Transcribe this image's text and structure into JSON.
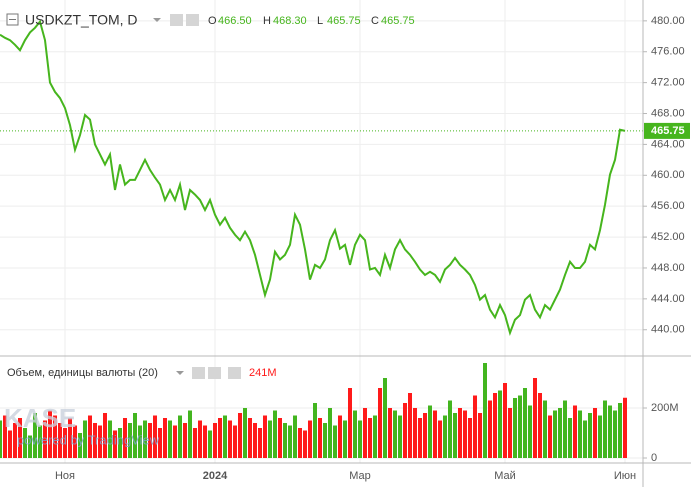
{
  "chart_data": [
    {
      "type": "line",
      "title": "USDKZT_TOM, D",
      "ohlc": [
        [
          "O",
          "466.50"
        ],
        [
          "H",
          "468.30"
        ],
        [
          "L",
          "465.75"
        ],
        [
          "C",
          "465.75"
        ]
      ],
      "categories": [
        null,
        null,
        null,
        null,
        null,
        null,
        null,
        null,
        null,
        null,
        null,
        null,
        null,
        "Ноя",
        null,
        null,
        null,
        null,
        null,
        null,
        null,
        null,
        null,
        null,
        null,
        null,
        null,
        null,
        null,
        null,
        null,
        null,
        null,
        null,
        null,
        null,
        null,
        null,
        null,
        null,
        null,
        null,
        null,
        "2024",
        null,
        null,
        null,
        null,
        null,
        null,
        null,
        null,
        null,
        null,
        null,
        null,
        null,
        null,
        null,
        null,
        null,
        null,
        null,
        null,
        null,
        null,
        null,
        null,
        null,
        null,
        null,
        null,
        "Мар",
        null,
        null,
        null,
        null,
        null,
        null,
        null,
        null,
        null,
        null,
        null,
        null,
        null,
        null,
        null,
        null,
        null,
        null,
        null,
        null,
        null,
        null,
        null,
        null,
        null,
        null,
        null,
        null,
        "Май",
        null,
        null,
        null,
        null,
        null,
        null,
        null,
        null,
        null,
        null,
        null,
        null,
        null,
        null,
        null,
        null,
        null,
        null,
        null,
        null,
        null,
        null,
        null,
        "Июн"
      ],
      "series": [
        {
          "name": "USDKZT_TOM",
          "color": "#46b51d",
          "values": [
            478.2,
            477.8,
            477.5,
            476.9,
            476.2,
            477.5,
            478.5,
            479.1,
            479.9,
            477.5,
            472,
            470.8,
            470,
            468.7,
            466.5,
            463.3,
            465.2,
            467.8,
            467.2,
            464,
            462.7,
            461.4,
            462.7,
            458.1,
            461.4,
            458.8,
            459.4,
            459.4,
            460.7,
            462,
            460.7,
            459.7,
            458.8,
            456.8,
            458.1,
            456.8,
            458.8,
            455.5,
            458.1,
            457.5,
            456.8,
            455.5,
            456.8,
            454.9,
            453.6,
            454.5,
            453.2,
            452.3,
            451.6,
            452.7,
            451.6,
            449.7,
            447.1,
            444.5,
            446.5,
            450.1,
            449.1,
            449.7,
            451,
            454.9,
            453.6,
            450.4,
            446.5,
            448.4,
            448,
            449.1,
            451.6,
            452.9,
            450.5,
            451,
            448.4,
            451,
            452.3,
            451.6,
            447.8,
            448,
            447.1,
            449.7,
            448,
            450.4,
            451.6,
            450.4,
            449.7,
            448.8,
            447.8,
            447.1,
            447.5,
            447.1,
            446.2,
            447.8,
            448.4,
            449.3,
            448.4,
            447.8,
            447.1,
            445.8,
            443.9,
            444.5,
            442.6,
            441.6,
            443.2,
            441.9,
            439.6,
            441.3,
            441.9,
            443.9,
            444.5,
            442.6,
            441.6,
            443.2,
            442.6,
            443.9,
            445.2,
            447.1,
            448.8,
            448,
            448,
            448.8,
            451,
            450.4,
            452.9,
            456.2,
            460.1,
            462,
            465.9,
            465.75
          ]
        }
      ],
      "ylim": [
        436.6,
        482.7
      ],
      "yticks": [
        {
          "value": 440,
          "label": "440.00"
        },
        {
          "value": 444,
          "label": "444.00"
        },
        {
          "value": 448,
          "label": "448.00"
        },
        {
          "value": 452,
          "label": "452.00"
        },
        {
          "value": 456,
          "label": "456.00"
        },
        {
          "value": 460,
          "label": "460.00"
        },
        {
          "value": 464,
          "label": "464.00"
        },
        {
          "value": 468,
          "label": "468.00"
        },
        {
          "value": 472,
          "label": "472.00"
        },
        {
          "value": 476,
          "label": "476.00"
        },
        {
          "value": 480,
          "label": "480.00"
        }
      ],
      "grid": true
    },
    {
      "type": "bar",
      "title": "Объем, единицы валюты (20)",
      "last_value_label": "241M",
      "up_color": "#43b51f",
      "down_color": "#ff1a1a",
      "values": [
        150,
        170,
        110,
        140,
        160,
        120,
        90,
        180,
        130,
        150,
        190,
        170,
        140,
        120,
        160,
        130,
        100,
        150,
        170,
        140,
        130,
        180,
        150,
        110,
        120,
        160,
        140,
        180,
        130,
        150,
        140,
        170,
        120,
        160,
        150,
        130,
        170,
        140,
        190,
        120,
        150,
        130,
        110,
        140,
        160,
        170,
        150,
        130,
        180,
        200,
        160,
        140,
        120,
        170,
        150,
        190,
        160,
        140,
        130,
        170,
        120,
        110,
        150,
        220,
        160,
        140,
        200,
        130,
        170,
        150,
        280,
        190,
        150,
        200,
        160,
        170,
        280,
        320,
        200,
        190,
        170,
        220,
        260,
        200,
        160,
        180,
        210,
        190,
        150,
        170,
        230,
        180,
        200,
        190,
        160,
        250,
        180,
        380,
        230,
        260,
        270,
        300,
        200,
        240,
        250,
        280,
        210,
        320,
        260,
        230,
        170,
        190,
        200,
        230,
        160,
        210,
        190,
        150,
        180,
        200,
        170,
        230,
        210,
        190,
        220,
        241
      ],
      "ylim": [
        -16,
        400
      ],
      "yticks": [
        0,
        {
          "value": 200,
          "label": "200M"
        }
      ]
    }
  ],
  "watermark": {
    "logo": "KASE",
    "caption": "powered by TradingView"
  }
}
